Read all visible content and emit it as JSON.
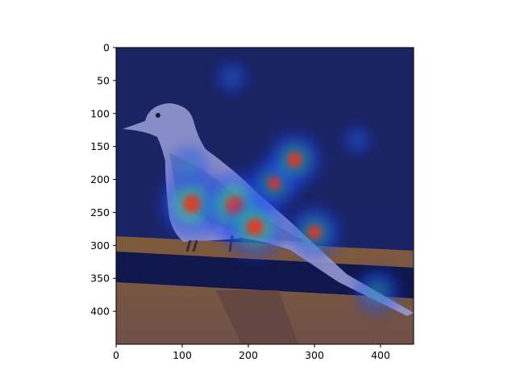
{
  "figure": {
    "image_description_name": "bird-gradcam-heatmap",
    "colormap": "jet",
    "colors": {
      "background": "#ffffff",
      "axis": "#000000",
      "sky": "#1a2461",
      "wood": "#7b5a43",
      "railing_dark": "#10164a",
      "bird_body": "#9aa0d6",
      "heat_low": "#1f3cff",
      "heat_mid": "#33e07a",
      "heat_high": "#ff2a10"
    }
  },
  "axes": {
    "xlim": [
      0,
      450
    ],
    "ylim": [
      450,
      0
    ],
    "x_ticks": [
      0,
      100,
      200,
      300,
      400
    ],
    "y_ticks": [
      0,
      50,
      100,
      150,
      200,
      250,
      300,
      350,
      400
    ],
    "x_tick_labels": [
      "0",
      "100",
      "200",
      "300",
      "400"
    ],
    "y_tick_labels": [
      "0",
      "50",
      "100",
      "150",
      "200",
      "250",
      "300",
      "350",
      "400"
    ]
  },
  "heatmap_hotspots": [
    {
      "x": 115,
      "y": 237,
      "intensity": 0.95
    },
    {
      "x": 180,
      "y": 240,
      "intensity": 1.0
    },
    {
      "x": 210,
      "y": 272,
      "intensity": 0.9
    },
    {
      "x": 240,
      "y": 205,
      "intensity": 0.7
    },
    {
      "x": 270,
      "y": 170,
      "intensity": 0.75
    },
    {
      "x": 300,
      "y": 280,
      "intensity": 0.7
    },
    {
      "x": 395,
      "y": 370,
      "intensity": 0.55
    },
    {
      "x": 110,
      "y": 180,
      "intensity": 0.45
    },
    {
      "x": 175,
      "y": 45,
      "intensity": 0.3
    },
    {
      "x": 365,
      "y": 140,
      "intensity": 0.25
    }
  ]
}
